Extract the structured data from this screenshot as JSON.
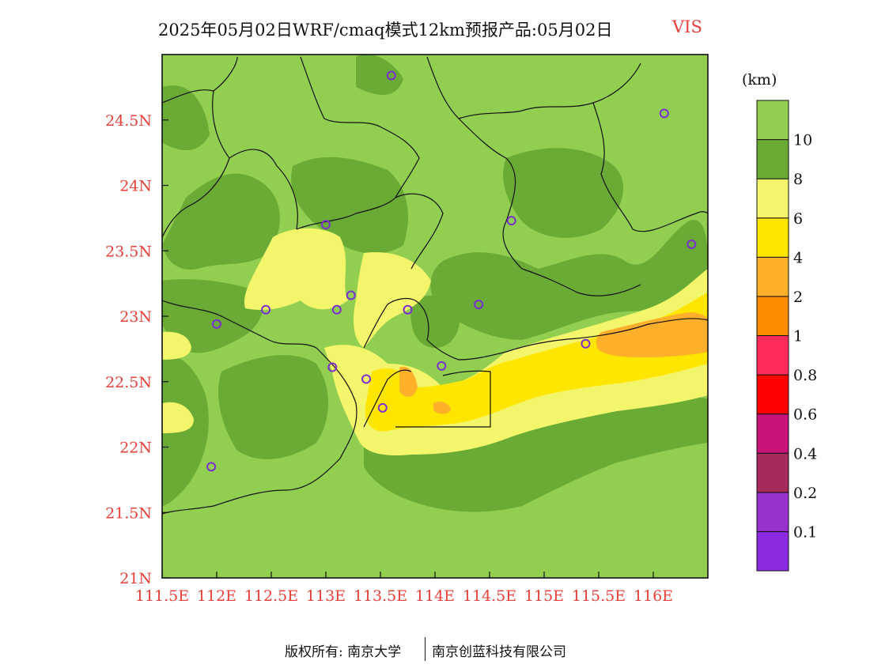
{
  "title": {
    "main": "2025年05月02日WRF/cmaq模式12km预报产品:05月02日",
    "variable": "VIS"
  },
  "legend": {
    "unit": "(km)",
    "bins": [
      {
        "color": "#8a2be2",
        "label": "0.1"
      },
      {
        "color": "#9932cc",
        "label": "0.2"
      },
      {
        "color": "#a62a5b",
        "label": "0.4"
      },
      {
        "color": "#c8147a",
        "label": "0.6"
      },
      {
        "color": "#ff0000",
        "label": "0.8"
      },
      {
        "color": "#ff2b5a",
        "label": "1"
      },
      {
        "color": "#ff8c00",
        "label": "2"
      },
      {
        "color": "#ffb02a",
        "label": "4"
      },
      {
        "color": "#ffe600",
        "label": "6"
      },
      {
        "color": "#f3f56a",
        "label": "8"
      },
      {
        "color": "#6aab36",
        "label": "10"
      },
      {
        "color": "#92cf50",
        "label": ""
      }
    ]
  },
  "axes": {
    "lon_ticks": [
      "111.5E",
      "112E",
      "112.5E",
      "113E",
      "113.5E",
      "114E",
      "114.5E",
      "115E",
      "115.5E",
      "116E"
    ],
    "lat_ticks": [
      "21N",
      "21.5N",
      "22N",
      "22.5N",
      "23N",
      "23.5N",
      "24N",
      "24.5N"
    ],
    "lon_range": [
      111.5,
      116.5
    ],
    "lat_range": [
      21.0,
      25.0
    ],
    "tick_color": "#e8403a"
  },
  "stations": [
    {
      "lon": 113.6,
      "lat": 24.84
    },
    {
      "lon": 116.1,
      "lat": 24.55
    },
    {
      "lon": 113.0,
      "lat": 23.7
    },
    {
      "lon": 114.7,
      "lat": 23.73
    },
    {
      "lon": 116.35,
      "lat": 23.55
    },
    {
      "lon": 113.23,
      "lat": 23.16
    },
    {
      "lon": 112.45,
      "lat": 23.05
    },
    {
      "lon": 113.1,
      "lat": 23.05
    },
    {
      "lon": 113.75,
      "lat": 23.05
    },
    {
      "lon": 114.4,
      "lat": 23.09
    },
    {
      "lon": 112.0,
      "lat": 22.94
    },
    {
      "lon": 115.38,
      "lat": 22.79
    },
    {
      "lon": 113.06,
      "lat": 22.61
    },
    {
      "lon": 114.06,
      "lat": 22.62
    },
    {
      "lon": 113.37,
      "lat": 22.52
    },
    {
      "lon": 113.52,
      "lat": 22.3
    },
    {
      "lon": 111.95,
      "lat": 21.85
    }
  ],
  "footer": {
    "copyright": "版权所有: 南京大学",
    "company": "南京创蓝科技有限公司"
  }
}
